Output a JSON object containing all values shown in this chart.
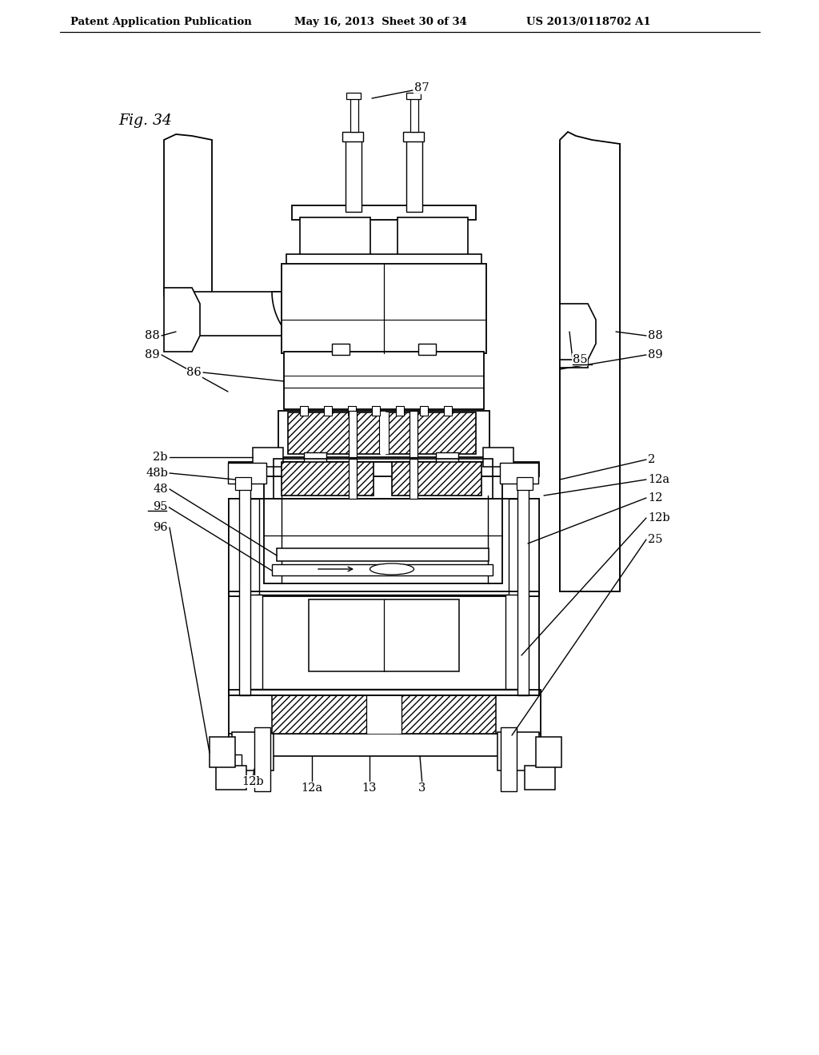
{
  "header_left": "Patent Application Publication",
  "header_mid": "May 16, 2013  Sheet 30 of 34",
  "header_right": "US 2013/0118702 A1",
  "fig_label": "Fig. 34",
  "bg_color": "#ffffff"
}
